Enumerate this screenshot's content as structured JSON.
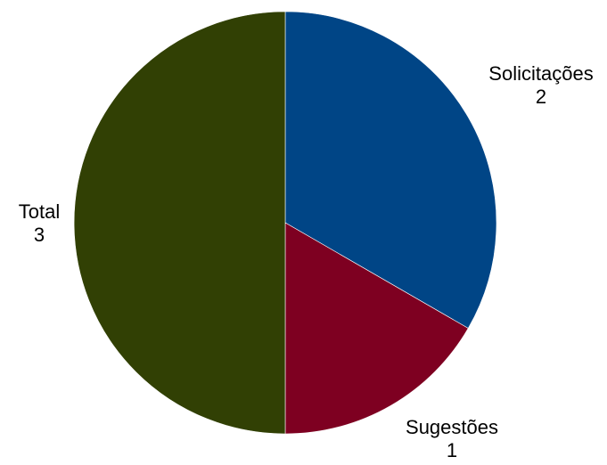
{
  "chart_data": {
    "type": "pie",
    "title": "",
    "legend": "none",
    "slices": [
      {
        "label": "Solicitações",
        "value": 2,
        "color": "#004586"
      },
      {
        "label": "Sugestões",
        "value": 1,
        "color": "#7e0021"
      },
      {
        "label": "Total",
        "value": 3,
        "color": "#314004"
      }
    ]
  }
}
